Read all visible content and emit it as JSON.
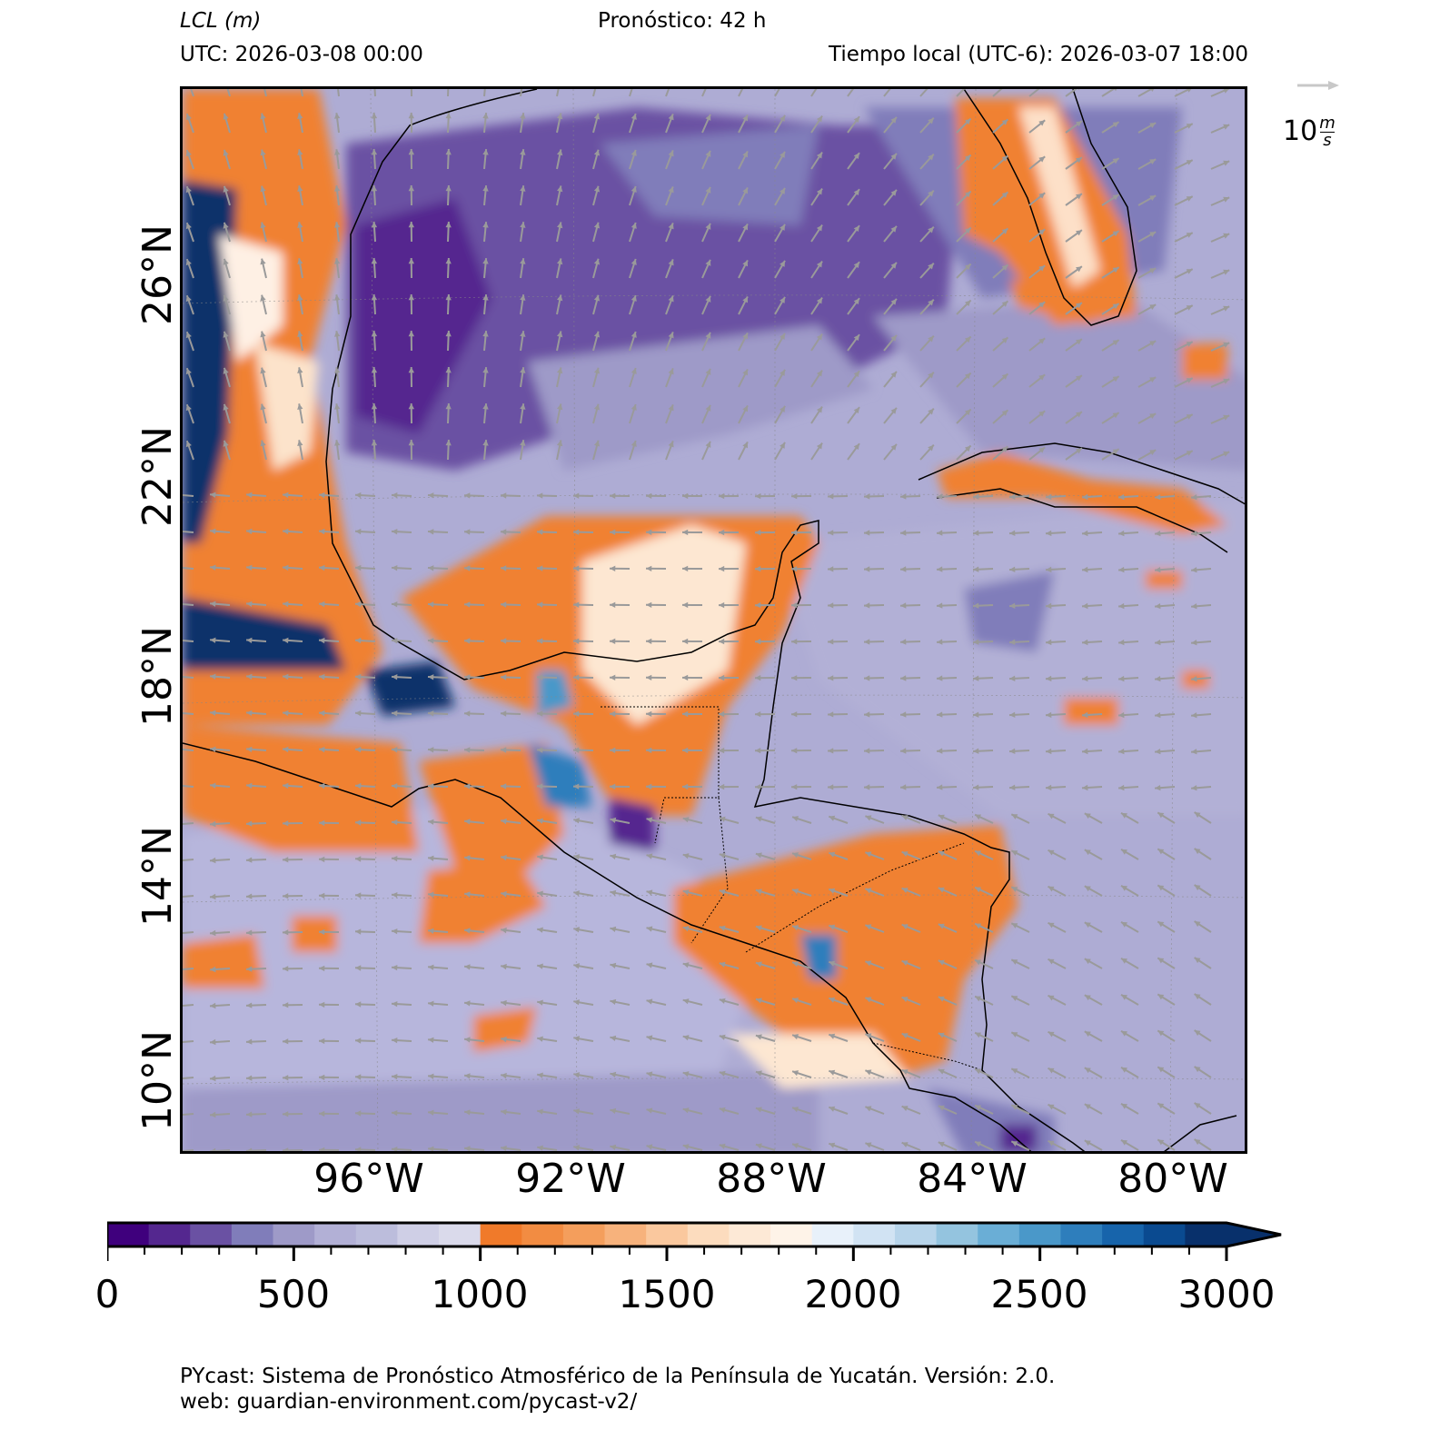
{
  "header": {
    "variable_label": "LCL (m)",
    "forecast_label": "Pronóstico: 42 h",
    "utc_label": "UTC:  2026-03-08 00:00",
    "local_time_label": "Tiempo local (UTC-6): 2026-03-07 18:00"
  },
  "map": {
    "lat_labels": [
      "26°N",
      "22°N",
      "18°N",
      "14°N",
      "10°N"
    ],
    "lon_labels": [
      "96°W",
      "92°W",
      "88°W",
      "84°W",
      "80°W"
    ],
    "colors": {
      "ocean_low": "#5a3b9c",
      "ocean_mid": "#8b86c2",
      "ocean_light": "#b7b6dc",
      "land_orange": "#f08130",
      "land_light": "#fce3cb",
      "high_blue": "#08306b",
      "coastline": "#000000",
      "wind_arrow": "#9a9a9a"
    }
  },
  "quiver_key": {
    "value": "10",
    "unit_num": "m",
    "unit_den": "s"
  },
  "colorbar": {
    "min": 0,
    "max": 3000,
    "step": 100,
    "extend": "max",
    "tick_labels": [
      "0",
      "500",
      "1000",
      "1500",
      "2000",
      "2500",
      "3000"
    ],
    "colors": [
      "#3f007d",
      "#54278f",
      "#6a51a3",
      "#807dba",
      "#9e9ac8",
      "#b2b0d6",
      "#bcbddc",
      "#cfcfe6",
      "#dadaeb",
      "#f07a2a",
      "#f28c42",
      "#f49e5c",
      "#f7b27c",
      "#fac89e",
      "#fcdcbe",
      "#fde9d6",
      "#fef3e8",
      "#e8f1fa",
      "#d1e3f3",
      "#b7d4ea",
      "#94c4df",
      "#6aaed6",
      "#4a98c9",
      "#2e7ebc",
      "#1764ab",
      "#0a4a90",
      "#08306b"
    ],
    "extend_color": "#08306b"
  },
  "footer": {
    "line1": "PYcast: Sistema de Pronóstico Atmosférico de la Península de Yucatán. Versión: 2.0.",
    "line2": "web: guardian-environment.com/pycast-v2/"
  }
}
